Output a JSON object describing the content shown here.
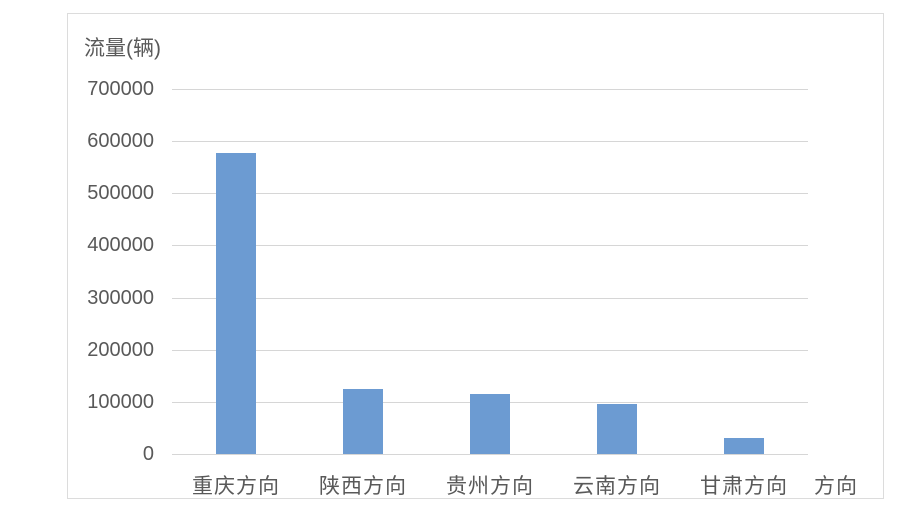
{
  "chart_data": {
    "type": "bar",
    "title": "流量(辆)",
    "xlabel": "方向",
    "ylabel": "流量(辆)",
    "categories": [
      "重庆方向",
      "陕西方向",
      "贵州方向",
      "云南方向",
      "甘肃方向"
    ],
    "values": [
      578000,
      125000,
      115000,
      96000,
      30000
    ],
    "ylim": [
      0,
      700000
    ],
    "ytick_step": 100000,
    "yticks": [
      0,
      100000,
      200000,
      300000,
      400000,
      500000,
      600000,
      700000
    ],
    "grid": true,
    "legend": false,
    "colors": {
      "bar": "#6c9bd2",
      "gridline": "#d6d6d6",
      "axis_text": "#595959",
      "panel_border": "#dcdcdc",
      "background": "#ffffff"
    }
  }
}
